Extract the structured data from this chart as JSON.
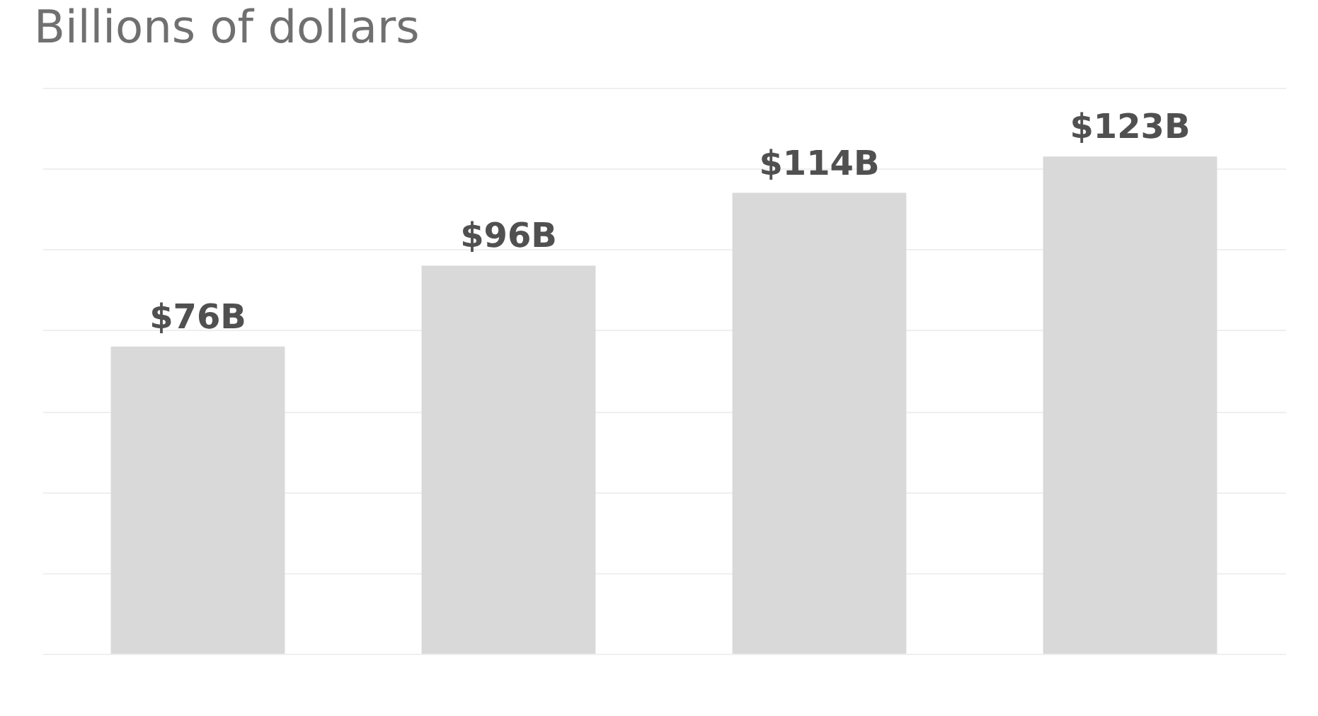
{
  "chart_data": {
    "type": "bar",
    "title": "Billions of dollars",
    "categories": [
      null,
      null,
      null,
      null
    ],
    "values": [
      76,
      96,
      114,
      123
    ],
    "value_labels": [
      "$76B",
      "$96B",
      "$114B",
      "$123B"
    ],
    "color": "#d9d9d9",
    "ylim": [
      0,
      140
    ],
    "yticks": [
      {
        "value": 0,
        "label": null
      },
      {
        "value": 20,
        "label": null
      },
      {
        "value": 40,
        "label": null
      },
      {
        "value": 60,
        "label": null
      },
      {
        "value": 80,
        "label": null
      },
      {
        "value": 100,
        "label": null
      },
      {
        "value": 120,
        "label": null
      },
      {
        "value": 140,
        "label": null
      }
    ],
    "grid": "y"
  }
}
